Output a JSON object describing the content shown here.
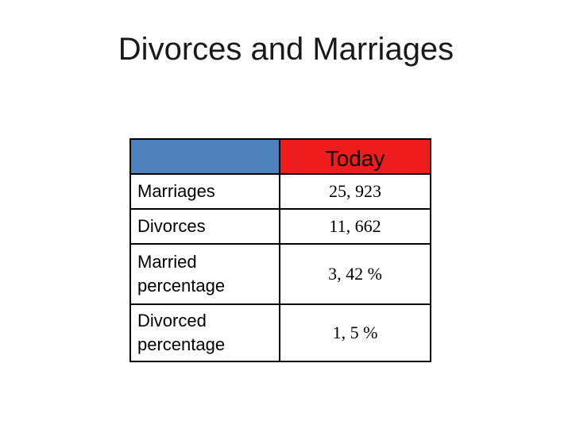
{
  "title": "Divorces and Marriages",
  "table": {
    "header": "Today",
    "rows": [
      [
        "Marriages",
        "25, 923"
      ],
      [
        "Divorces",
        "11, 662"
      ],
      [
        "Married percentage",
        "3, 42 %"
      ],
      [
        "Divorced percentage",
        "1, 5 %"
      ]
    ]
  }
}
